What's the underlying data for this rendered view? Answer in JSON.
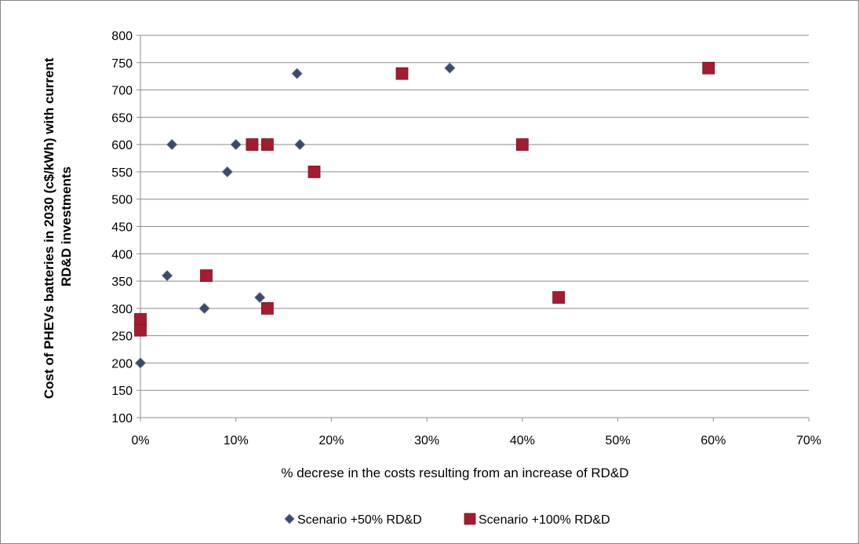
{
  "chart_data": {
    "type": "scatter",
    "title": "",
    "xlabel": "% decrese in the costs resulting from an increase of RD&D",
    "ylabel_lines": [
      "Cost of PHEVs batteries in 2030 (c$/kWh) with current",
      "RD&D investments"
    ],
    "xlim": [
      0,
      0.7
    ],
    "ylim": [
      100,
      800
    ],
    "x_ticks": [
      0,
      0.1,
      0.2,
      0.3,
      0.4,
      0.5,
      0.6,
      0.7
    ],
    "x_tick_labels": [
      "0%",
      "10%",
      "20%",
      "30%",
      "40%",
      "50%",
      "60%",
      "70%"
    ],
    "y_ticks": [
      100,
      150,
      200,
      250,
      300,
      350,
      400,
      450,
      500,
      550,
      600,
      650,
      700,
      750,
      800
    ],
    "y_tick_labels": [
      "100",
      "150",
      "200",
      "250",
      "300",
      "350",
      "400",
      "450",
      "500",
      "550",
      "600",
      "650",
      "700",
      "750",
      "800"
    ],
    "grid": "horizontal",
    "legend_position": "bottom",
    "series": [
      {
        "name": "Scenario +50% RD&D",
        "marker": "diamond",
        "color": "#3B4A6B",
        "points": [
          {
            "x": 0.0,
            "y": 200
          },
          {
            "x": 0.028,
            "y": 360
          },
          {
            "x": 0.033,
            "y": 600
          },
          {
            "x": 0.067,
            "y": 300
          },
          {
            "x": 0.091,
            "y": 550
          },
          {
            "x": 0.1,
            "y": 600
          },
          {
            "x": 0.125,
            "y": 320
          },
          {
            "x": 0.164,
            "y": 730
          },
          {
            "x": 0.167,
            "y": 600
          },
          {
            "x": 0.324,
            "y": 740
          }
        ]
      },
      {
        "name": "Scenario +100% RD&D",
        "marker": "square",
        "color": "#A51C30",
        "points": [
          {
            "x": 0.0,
            "y": 280
          },
          {
            "x": 0.0,
            "y": 260
          },
          {
            "x": 0.069,
            "y": 360
          },
          {
            "x": 0.117,
            "y": 600
          },
          {
            "x": 0.133,
            "y": 600
          },
          {
            "x": 0.133,
            "y": 300
          },
          {
            "x": 0.182,
            "y": 550
          },
          {
            "x": 0.274,
            "y": 730
          },
          {
            "x": 0.4,
            "y": 600
          },
          {
            "x": 0.438,
            "y": 320
          },
          {
            "x": 0.595,
            "y": 740
          }
        ]
      }
    ]
  }
}
